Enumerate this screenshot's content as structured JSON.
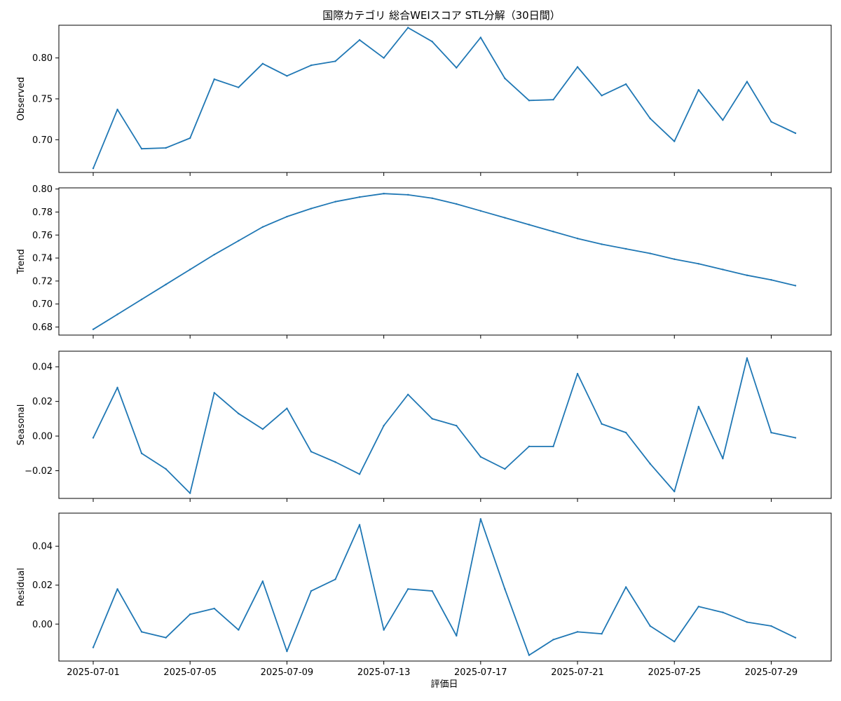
{
  "chart_data": {
    "type": "line",
    "title": "国際カテゴリ 総合WEIスコア STL分解（30日間）",
    "xlabel": "評価日",
    "line_color": "#1f77b4",
    "x": [
      "2025-07-01",
      "2025-07-02",
      "2025-07-03",
      "2025-07-04",
      "2025-07-05",
      "2025-07-06",
      "2025-07-07",
      "2025-07-08",
      "2025-07-09",
      "2025-07-10",
      "2025-07-11",
      "2025-07-12",
      "2025-07-13",
      "2025-07-14",
      "2025-07-15",
      "2025-07-16",
      "2025-07-17",
      "2025-07-18",
      "2025-07-19",
      "2025-07-20",
      "2025-07-21",
      "2025-07-22",
      "2025-07-23",
      "2025-07-24",
      "2025-07-25",
      "2025-07-26",
      "2025-07-27",
      "2025-07-28",
      "2025-07-29",
      "2025-07-30"
    ],
    "x_tick_labels": [
      "2025-07-01",
      "2025-07-05",
      "2025-07-09",
      "2025-07-13",
      "2025-07-17",
      "2025-07-21",
      "2025-07-25",
      "2025-07-29"
    ],
    "x_tick_indices": [
      0,
      4,
      8,
      12,
      16,
      20,
      24,
      28
    ],
    "panels": [
      {
        "ylabel": "Observed",
        "ylim": [
          0.66,
          0.84
        ],
        "yticks": [
          0.7,
          0.75,
          0.8
        ],
        "ytick_labels": [
          "0.70",
          "0.75",
          "0.80"
        ],
        "values": [
          0.665,
          0.737,
          0.689,
          0.69,
          0.702,
          0.774,
          0.764,
          0.793,
          0.778,
          0.791,
          0.796,
          0.822,
          0.8,
          0.837,
          0.82,
          0.788,
          0.825,
          0.775,
          0.748,
          0.749,
          0.789,
          0.754,
          0.768,
          0.726,
          0.698,
          0.761,
          0.724,
          0.771,
          0.722,
          0.708
        ]
      },
      {
        "ylabel": "Trend",
        "ylim": [
          0.673,
          0.801
        ],
        "yticks": [
          0.68,
          0.7,
          0.72,
          0.74,
          0.76,
          0.78,
          0.8
        ],
        "ytick_labels": [
          "0.68",
          "0.70",
          "0.72",
          "0.74",
          "0.76",
          "0.78",
          "0.80"
        ],
        "values": [
          0.678,
          0.691,
          0.704,
          0.717,
          0.73,
          0.743,
          0.755,
          0.767,
          0.776,
          0.783,
          0.789,
          0.793,
          0.796,
          0.795,
          0.792,
          0.787,
          0.781,
          0.775,
          0.769,
          0.763,
          0.757,
          0.752,
          0.748,
          0.744,
          0.739,
          0.735,
          0.73,
          0.725,
          0.721,
          0.716
        ]
      },
      {
        "ylabel": "Seasonal",
        "ylim": [
          -0.036,
          0.049
        ],
        "yticks": [
          -0.02,
          0.0,
          0.02,
          0.04
        ],
        "ytick_labels": [
          "−0.02",
          "0.00",
          "0.02",
          "0.04"
        ],
        "values": [
          -0.001,
          0.028,
          -0.01,
          -0.019,
          -0.033,
          0.025,
          0.013,
          0.004,
          0.016,
          -0.009,
          -0.015,
          -0.022,
          0.006,
          0.024,
          0.01,
          0.006,
          -0.012,
          -0.019,
          -0.006,
          -0.006,
          0.036,
          0.007,
          0.002,
          -0.016,
          -0.032,
          0.017,
          -0.013,
          0.045,
          0.002,
          -0.001
        ]
      },
      {
        "ylabel": "Residual",
        "ylim": [
          -0.019,
          0.057
        ],
        "yticks": [
          0.0,
          0.02,
          0.04
        ],
        "ytick_labels": [
          "0.00",
          "0.02",
          "0.04"
        ],
        "values": [
          -0.012,
          0.018,
          -0.004,
          -0.007,
          0.005,
          0.008,
          -0.003,
          0.022,
          -0.014,
          0.017,
          0.023,
          0.051,
          -0.003,
          0.018,
          0.017,
          -0.006,
          0.054,
          0.018,
          -0.016,
          -0.008,
          -0.004,
          -0.005,
          0.019,
          -0.001,
          -0.009,
          0.009,
          0.006,
          0.001,
          -0.001,
          -0.007
        ]
      }
    ]
  }
}
